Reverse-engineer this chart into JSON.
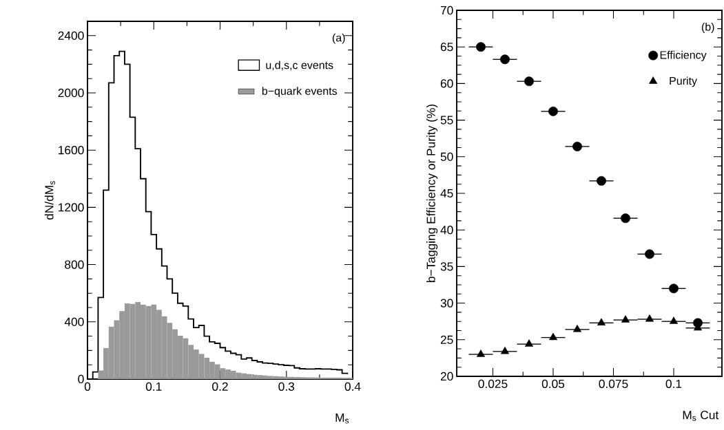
{
  "chart_data": [
    {
      "type": "histogram",
      "xlabel": "M$_{s}$",
      "ylabel": "dN/dM$_{s}$",
      "annotations": [
        "(a)"
      ],
      "bins": [
        0,
        0.008,
        0.016,
        0.024,
        0.032,
        0.04,
        0.048,
        0.056,
        0.064,
        0.072,
        0.08,
        0.088,
        0.096,
        0.104,
        0.112,
        0.12,
        0.128,
        0.136,
        0.144,
        0.152,
        0.16,
        0.168,
        0.176,
        0.184,
        0.192,
        0.2,
        0.208,
        0.216,
        0.224,
        0.232,
        0.24,
        0.248,
        0.256,
        0.264,
        0.272,
        0.28,
        0.288,
        0.296,
        0.304,
        0.312,
        0.32,
        0.328,
        0.336,
        0.344,
        0.352,
        0.36,
        0.368,
        0.376,
        0.384,
        0.392,
        0.4
      ],
      "series": [
        {
          "name": "u,d,s,c events",
          "type": "step",
          "color": "#000000",
          "x": [
            0,
            0.008,
            0.016,
            0.024,
            0.032,
            0.04,
            0.048,
            0.056,
            0.064,
            0.072,
            0.08,
            0.088,
            0.096,
            0.104,
            0.112,
            0.12,
            0.128,
            0.136,
            0.144,
            0.152,
            0.16,
            0.168,
            0.176,
            0.184,
            0.192,
            0.2,
            0.208,
            0.216,
            0.224,
            0.232,
            0.24,
            0.248,
            0.256,
            0.264,
            0.272,
            0.28,
            0.288,
            0.296,
            0.304,
            0.312,
            0.32,
            0.328,
            0.336,
            0.344,
            0.352,
            0.36,
            0.368,
            0.376,
            0.384,
            0.392
          ],
          "values": [
            0,
            50,
            570,
            1320,
            2070,
            2260,
            2290,
            2200,
            1830,
            1610,
            1400,
            1170,
            1010,
            910,
            790,
            700,
            600,
            530,
            510,
            420,
            360,
            375,
            300,
            260,
            250,
            220,
            195,
            180,
            170,
            140,
            148,
            130,
            120,
            112,
            110,
            105,
            100,
            96,
            94,
            78,
            72,
            70,
            70,
            72,
            70,
            70,
            68,
            65,
            40,
            35
          ]
        },
        {
          "name": "b−quark events",
          "type": "histogram",
          "color": "#9a9a9a",
          "values": [
            0,
            0,
            60,
            217,
            366,
            411,
            475,
            529,
            525,
            538,
            520,
            511,
            520,
            484,
            439,
            393,
            348,
            303,
            285,
            239,
            207,
            176,
            149,
            121,
            103,
            76,
            67,
            58,
            45,
            40,
            35,
            30,
            28,
            25,
            22,
            20,
            18,
            16,
            15,
            14,
            13,
            12,
            12,
            11,
            10,
            10,
            10,
            10,
            9,
            9
          ]
        }
      ],
      "xlim": [
        0,
        0.4
      ],
      "xticks": [
        0,
        0.1,
        0.2,
        0.3,
        0.4
      ],
      "ylim": [
        0,
        2500
      ],
      "yticks": [
        0,
        400,
        800,
        1200,
        1600,
        2000,
        2400
      ],
      "legend": "top right"
    },
    {
      "type": "scatter",
      "xlabel": "M$_{s}$ Cut",
      "ylabel": "b−Tagging Efficiency or Purity (%)",
      "annotations": [
        "(b)"
      ],
      "series": [
        {
          "name": "Efficiency",
          "color": "#000000",
          "marker": "circle",
          "x": [
            0.02,
            0.03,
            0.04,
            0.05,
            0.06,
            0.07,
            0.08,
            0.09,
            0.1,
            0.11
          ],
          "values": [
            65.0,
            63.3,
            60.3,
            56.2,
            51.4,
            46.7,
            41.6,
            36.7,
            32.0,
            27.3
          ],
          "xerrors": [
            0.005,
            0.005,
            0.005,
            0.005,
            0.005,
            0.005,
            0.005,
            0.005,
            0.005,
            0.005
          ]
        },
        {
          "name": "Purity",
          "color": "#000000",
          "marker": "triangle",
          "x": [
            0.02,
            0.03,
            0.04,
            0.05,
            0.06,
            0.07,
            0.08,
            0.09,
            0.1,
            0.11
          ],
          "values": [
            23.0,
            23.4,
            24.4,
            25.3,
            26.4,
            27.3,
            27.7,
            27.8,
            27.5,
            26.6
          ],
          "xerrors": [
            0.005,
            0.005,
            0.005,
            0.005,
            0.005,
            0.005,
            0.005,
            0.005,
            0.005,
            0.005
          ]
        }
      ],
      "xlim": [
        0.01,
        0.12
      ],
      "xticks": [
        0.025,
        0.05,
        0.075,
        0.1
      ],
      "ylim": [
        20,
        70
      ],
      "yticks": [
        20,
        25,
        30,
        35,
        40,
        45,
        50,
        55,
        60,
        65,
        70
      ],
      "legend": "top right"
    }
  ]
}
